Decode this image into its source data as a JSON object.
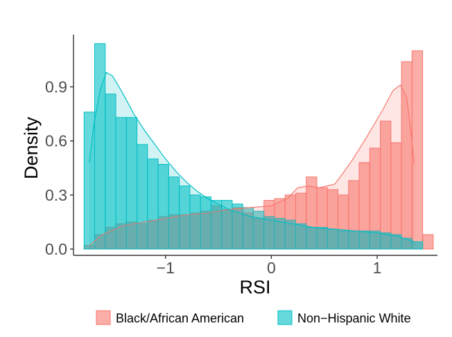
{
  "chart_data": {
    "type": "bar",
    "xlabel": "RSI",
    "ylabel": "Density",
    "xlim": [
      -1.87,
      1.57
    ],
    "ylim": [
      -0.035,
      1.19
    ],
    "x_ticks": [
      {
        "value": -1,
        "label": "−1"
      },
      {
        "value": 0,
        "label": "0"
      },
      {
        "value": 1,
        "label": "1"
      }
    ],
    "y_ticks": [
      {
        "value": 0.0,
        "label": "0.0"
      },
      {
        "value": 0.3,
        "label": "0.3"
      },
      {
        "value": 0.6,
        "label": "0.6"
      },
      {
        "value": 0.9,
        "label": "0.9"
      }
    ],
    "bin_start": -1.77,
    "bin_width": 0.1,
    "grid": false,
    "legend_position": "bottom",
    "series": [
      {
        "name": "Black/African American",
        "fill": "#F8766D",
        "values": [
          0.02,
          0.08,
          0.12,
          0.14,
          0.15,
          0.14,
          0.16,
          0.18,
          0.19,
          0.19,
          0.2,
          0.21,
          0.24,
          0.22,
          0.23,
          0.2,
          0.17,
          0.27,
          0.28,
          0.3,
          0.31,
          0.4,
          0.34,
          0.33,
          0.3,
          0.38,
          0.48,
          0.56,
          0.71,
          0.59,
          1.04,
          1.1,
          0.08
        ],
        "density_curve": [
          [
            -1.72,
            0.02
          ],
          [
            -1.6,
            0.08
          ],
          [
            -1.4,
            0.13
          ],
          [
            -1.2,
            0.15
          ],
          [
            -1.0,
            0.17
          ],
          [
            -0.8,
            0.19
          ],
          [
            -0.6,
            0.2
          ],
          [
            -0.4,
            0.22
          ],
          [
            -0.2,
            0.23
          ],
          [
            0.0,
            0.24
          ],
          [
            0.15,
            0.28
          ],
          [
            0.25,
            0.34
          ],
          [
            0.35,
            0.35
          ],
          [
            0.45,
            0.34
          ],
          [
            0.6,
            0.36
          ],
          [
            0.75,
            0.48
          ],
          [
            0.9,
            0.62
          ],
          [
            1.05,
            0.77
          ],
          [
            1.15,
            0.88
          ],
          [
            1.22,
            0.91
          ],
          [
            1.28,
            0.84
          ],
          [
            1.32,
            0.65
          ],
          [
            1.35,
            0.47
          ]
        ]
      },
      {
        "name": "Non−Hispanic White",
        "fill": "#00BFC4",
        "values": [
          0.76,
          1.14,
          0.86,
          0.73,
          0.73,
          0.58,
          0.5,
          0.47,
          0.4,
          0.35,
          0.3,
          0.29,
          0.27,
          0.27,
          0.25,
          0.23,
          0.21,
          0.18,
          0.17,
          0.16,
          0.14,
          0.12,
          0.12,
          0.11,
          0.1,
          0.1,
          0.1,
          0.1,
          0.09,
          0.08,
          0.06,
          0.04,
          0.0
        ],
        "density_curve": [
          [
            -1.72,
            0.48
          ],
          [
            -1.68,
            0.68
          ],
          [
            -1.62,
            0.88
          ],
          [
            -1.56,
            0.98
          ],
          [
            -1.5,
            0.96
          ],
          [
            -1.4,
            0.86
          ],
          [
            -1.3,
            0.75
          ],
          [
            -1.2,
            0.66
          ],
          [
            -1.1,
            0.58
          ],
          [
            -1.0,
            0.5
          ],
          [
            -0.9,
            0.43
          ],
          [
            -0.8,
            0.37
          ],
          [
            -0.7,
            0.32
          ],
          [
            -0.6,
            0.28
          ],
          [
            -0.5,
            0.25
          ],
          [
            -0.4,
            0.22
          ],
          [
            -0.3,
            0.2
          ],
          [
            -0.2,
            0.18
          ],
          [
            -0.1,
            0.17
          ],
          [
            0.0,
            0.16
          ],
          [
            0.2,
            0.14
          ],
          [
            0.4,
            0.12
          ],
          [
            0.6,
            0.11
          ],
          [
            0.8,
            0.1
          ],
          [
            1.0,
            0.09
          ],
          [
            1.2,
            0.07
          ],
          [
            1.35,
            0.04
          ]
        ]
      }
    ]
  }
}
